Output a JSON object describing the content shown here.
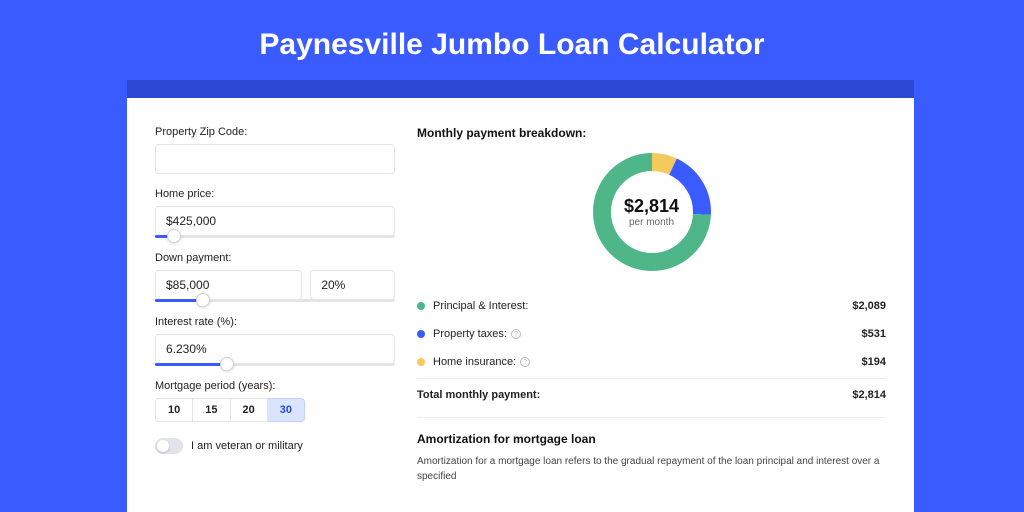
{
  "page": {
    "title": "Paynesville Jumbo Loan Calculator",
    "bg_color": "#3a5bff",
    "shadow_color": "#2c49d6",
    "card_bg": "#ffffff"
  },
  "form": {
    "zip": {
      "label": "Property Zip Code:",
      "value": ""
    },
    "home_price": {
      "label": "Home price:",
      "value": "$425,000",
      "slider_pct": 8
    },
    "down_payment": {
      "label": "Down payment:",
      "amount": "$85,000",
      "percent": "20%",
      "slider_pct": 20
    },
    "interest": {
      "label": "Interest rate (%):",
      "value": "6.230%",
      "slider_pct": 30
    },
    "period": {
      "label": "Mortgage period (years):",
      "options": [
        "10",
        "15",
        "20",
        "30"
      ],
      "selected": "30"
    },
    "veteran": {
      "label": "I am veteran or military",
      "checked": false
    }
  },
  "breakdown": {
    "title": "Monthly payment breakdown:",
    "center_amount": "$2,814",
    "center_sub": "per month",
    "items": [
      {
        "key": "principal_interest",
        "label": "Principal & Interest:",
        "value": "$2,089",
        "amount": 2089,
        "color": "#4fb68a",
        "has_info": false
      },
      {
        "key": "property_taxes",
        "label": "Property taxes:",
        "value": "$531",
        "amount": 531,
        "color": "#3a5bff",
        "has_info": true
      },
      {
        "key": "home_insurance",
        "label": "Home insurance:",
        "value": "$194",
        "amount": 194,
        "color": "#f4c95d",
        "has_info": true
      }
    ],
    "total": {
      "label": "Total monthly payment:",
      "value": "$2,814",
      "amount": 2814
    },
    "donut": {
      "stroke_width": 18,
      "radius": 50,
      "bg": "#ffffff"
    }
  },
  "amortization": {
    "title": "Amortization for mortgage loan",
    "text": "Amortization for a mortgage loan refers to the gradual repayment of the loan principal and interest over a specified"
  }
}
